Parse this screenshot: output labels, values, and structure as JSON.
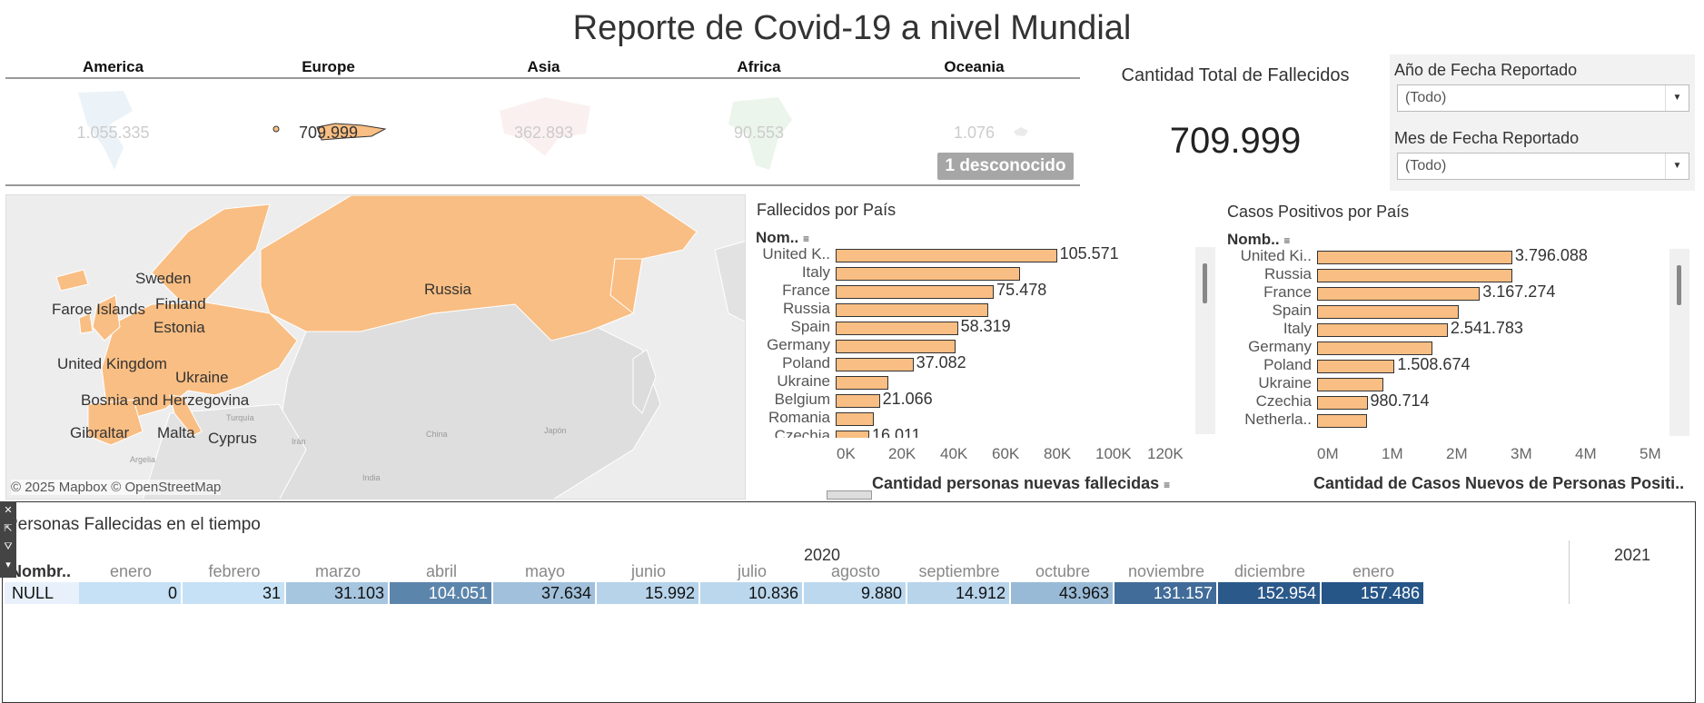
{
  "title": "Reporte de Covid-19 a nivel Mundial",
  "continents": [
    {
      "name": "America",
      "value": "1.055.335"
    },
    {
      "name": "Europe",
      "value": "709.999"
    },
    {
      "name": "Asia",
      "value": "362.893"
    },
    {
      "name": "Africa",
      "value": "90.553"
    },
    {
      "name": "Oceania",
      "value": "1.076"
    }
  ],
  "unknown_badge": "1 desconocido",
  "kpi": {
    "title": "Cantidad Total de Fallecidos",
    "value": "709.999"
  },
  "filters": {
    "year_label": "Año de Fecha Reportado",
    "year_value": "(Todo)",
    "month_label": "Mes de Fecha Reportado",
    "month_value": "(Todo)"
  },
  "map": {
    "labels": [
      "Sweden",
      "Faroe Islands",
      "Finland",
      "Estonia",
      "Russia",
      "United Kingdom",
      "Ukraine",
      "Bosnia and Herzegovina",
      "Gibraltar",
      "Malta",
      "Cyprus"
    ],
    "small_labels": [
      "Turquía",
      "China",
      "Irán",
      "India",
      "Japón",
      "Argelia"
    ],
    "attribution": "© 2025 Mapbox © OpenStreetMap",
    "colors": {
      "highlight": "#f9be83",
      "land": "#e3e3e3",
      "sea": "#ececec"
    }
  },
  "deaths_chart": {
    "title": "Fallecidos por País",
    "header": "Nom..",
    "xlabel": "Cantidad personas nuevas fallecidas",
    "ticks": [
      "0K",
      "20K",
      "40K",
      "60K",
      "80K",
      "100K",
      "120K"
    ],
    "labels": [
      "105.571",
      "75.478",
      "58.319",
      "37.082",
      "21.066",
      "16.011"
    ]
  },
  "cases_chart": {
    "title": "Casos Positivos por País",
    "header": "Nomb..",
    "xlabel": "Cantidad de Casos Nuevos de Personas Positi..",
    "ticks": [
      "0M",
      "1M",
      "2M",
      "3M",
      "4M",
      "5M"
    ],
    "labels": [
      "3.796.088",
      "3.167.274",
      "2.541.783",
      "1.508.674",
      "980.714"
    ]
  },
  "chart_data": [
    {
      "type": "bar",
      "title": "Fallecidos por País",
      "xlabel": "Cantidad personas nuevas fallecidas",
      "categories": [
        "United K..",
        "Italy",
        "France",
        "Russia",
        "Spain",
        "Germany",
        "Poland",
        "Ukraine",
        "Belgium",
        "Romania",
        "Czechia"
      ],
      "values": [
        105571,
        88000,
        75478,
        73000,
        58319,
        57000,
        37082,
        25000,
        21066,
        18000,
        16011
      ],
      "xlim": [
        0,
        130000
      ],
      "color": "#f9be83"
    },
    {
      "type": "bar",
      "title": "Casos Positivos por País",
      "xlabel": "Cantidad de Casos Nuevos de Personas Positi..",
      "categories": [
        "United Ki..",
        "Russia",
        "France",
        "Spain",
        "Italy",
        "Germany",
        "Poland",
        "Ukraine",
        "Czechia",
        "Netherla.."
      ],
      "values": [
        3796088,
        3800000,
        3167274,
        2750000,
        2541783,
        2250000,
        1508674,
        1290000,
        980714,
        980000
      ],
      "xlim": [
        0,
        5300000
      ],
      "color": "#f9be83"
    }
  ],
  "timeline": {
    "title": "Personas Fallecidas en el tiempo",
    "row_header": "Nombr..",
    "row_label": "NULL",
    "year1": "2020",
    "year2": "2021",
    "months": [
      "enero",
      "febrero",
      "marzo",
      "abril",
      "mayo",
      "junio",
      "julio",
      "agosto",
      "septiembre",
      "octubre",
      "noviembre",
      "diciembre",
      "enero"
    ],
    "values": [
      "0",
      "31",
      "31.103",
      "104.051",
      "37.634",
      "15.992",
      "10.836",
      "9.880",
      "14.912",
      "43.963",
      "131.157",
      "152.954",
      "157.486"
    ],
    "numeric": [
      0,
      31,
      31103,
      104051,
      37634,
      15992,
      10836,
      9880,
      14912,
      43963,
      131157,
      152954,
      157486
    ]
  }
}
